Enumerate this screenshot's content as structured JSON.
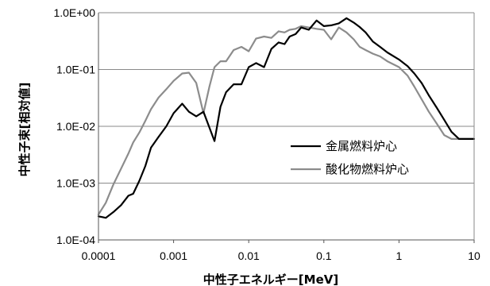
{
  "chart_data": {
    "type": "line",
    "xlabel": "中性子エネルギー[MeV]",
    "ylabel": "中性子束[相対値]",
    "x_scale": "log",
    "y_scale": "log",
    "xlim": [
      0.0001,
      10
    ],
    "ylim": [
      0.0001,
      1
    ],
    "x_ticks": [
      "0.0001",
      "0.001",
      "0.01",
      "0.1",
      "1",
      "10"
    ],
    "y_ticks": [
      "1.0E-04",
      "1.0E-03",
      "1.0E-02",
      "1.0E-01",
      "1.0E+00"
    ],
    "grid": "horizontal",
    "legend_position": "right",
    "series": [
      {
        "name": "金属燃料炉心",
        "color": "#000000",
        "x": [
          0.0001,
          0.000125,
          0.000158,
          0.0002,
          0.00025,
          0.00029,
          0.00035,
          0.00042,
          0.0005,
          0.00063,
          0.0008,
          0.001,
          0.0013,
          0.0016,
          0.002,
          0.0025,
          0.003,
          0.0035,
          0.0042,
          0.005,
          0.0063,
          0.008,
          0.01,
          0.0125,
          0.016,
          0.02,
          0.025,
          0.03,
          0.035,
          0.042,
          0.05,
          0.063,
          0.08,
          0.1,
          0.125,
          0.158,
          0.2,
          0.25,
          0.3,
          0.36,
          0.45,
          0.56,
          0.7,
          1.0,
          1.3,
          1.6,
          2.0,
          2.5,
          3.2,
          4.0,
          5.0,
          6.3,
          8.0,
          10
        ],
        "values": [
          0.00026,
          0.000245,
          0.00031,
          0.00041,
          0.0006,
          0.00065,
          0.0011,
          0.002,
          0.0042,
          0.0065,
          0.01,
          0.017,
          0.025,
          0.018,
          0.015,
          0.018,
          0.0095,
          0.0055,
          0.022,
          0.04,
          0.055,
          0.055,
          0.11,
          0.13,
          0.11,
          0.23,
          0.3,
          0.28,
          0.38,
          0.42,
          0.55,
          0.5,
          0.73,
          0.58,
          0.6,
          0.65,
          0.8,
          0.67,
          0.56,
          0.45,
          0.31,
          0.25,
          0.2,
          0.15,
          0.115,
          0.085,
          0.058,
          0.035,
          0.021,
          0.013,
          0.008,
          0.006,
          0.006,
          0.006
        ]
      },
      {
        "name": "酸化物燃料炉心",
        "color": "#8c8c8c",
        "x": [
          0.0001,
          0.000125,
          0.000158,
          0.0002,
          0.00025,
          0.00029,
          0.00035,
          0.00042,
          0.0005,
          0.00063,
          0.0008,
          0.001,
          0.0013,
          0.0016,
          0.002,
          0.0025,
          0.003,
          0.0035,
          0.0042,
          0.005,
          0.0063,
          0.008,
          0.01,
          0.0125,
          0.016,
          0.02,
          0.025,
          0.03,
          0.035,
          0.042,
          0.05,
          0.063,
          0.08,
          0.1,
          0.125,
          0.158,
          0.2,
          0.25,
          0.3,
          0.36,
          0.45,
          0.56,
          0.7,
          1.0,
          1.3,
          1.6,
          2.0,
          2.5,
          3.2,
          4.0,
          5.0,
          6.3,
          8.0,
          10
        ],
        "values": [
          0.00028,
          0.00045,
          0.00095,
          0.0018,
          0.0033,
          0.0052,
          0.0078,
          0.0125,
          0.02,
          0.032,
          0.045,
          0.063,
          0.085,
          0.088,
          0.058,
          0.017,
          0.05,
          0.11,
          0.14,
          0.14,
          0.22,
          0.25,
          0.21,
          0.35,
          0.38,
          0.36,
          0.47,
          0.45,
          0.5,
          0.52,
          0.58,
          0.55,
          0.52,
          0.5,
          0.34,
          0.55,
          0.45,
          0.34,
          0.25,
          0.22,
          0.19,
          0.17,
          0.14,
          0.11,
          0.078,
          0.05,
          0.03,
          0.018,
          0.011,
          0.007,
          0.006,
          0.006,
          0.006,
          0.006
        ]
      }
    ]
  }
}
